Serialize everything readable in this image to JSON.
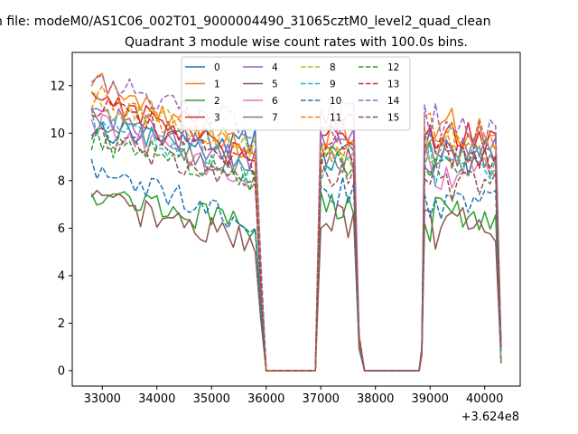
{
  "chart_data": {
    "type": "line",
    "suptitle": "n file: modeM0/AS1C06_002T01_9000004490_31065cztM0_level2_quad_clean",
    "title": "Quadrant 3 module wise count rates with 100.0s bins.",
    "xlabel": "",
    "ylabel": "",
    "x_offset_label": "+3.624e8",
    "xlim": [
      32450,
      40650
    ],
    "ylim": [
      -0.65,
      13.4
    ],
    "xticks": [
      "33000",
      "34000",
      "35000",
      "36000",
      "37000",
      "38000",
      "39000",
      "40000"
    ],
    "yticks": [
      "0",
      "2",
      "4",
      "6",
      "8",
      "10",
      "12"
    ],
    "legend_position": "top-center",
    "segments": [
      {
        "start": 32800,
        "end": 35800
      },
      {
        "start": 37000,
        "end": 37600
      },
      {
        "start": 38900,
        "end": 40200
      }
    ],
    "series": [
      {
        "name": "0",
        "color": "#1f77b4",
        "dash": "solid",
        "level": 10.2,
        "tail": 9.6,
        "mid": 9.0,
        "end": 9.0
      },
      {
        "name": "1",
        "color": "#ff7f0e",
        "dash": "solid",
        "level": 12.2,
        "tail": 9.2,
        "mid": 9.8,
        "end": 10.0
      },
      {
        "name": "2",
        "color": "#2ca02c",
        "dash": "solid",
        "level": 7.6,
        "tail": 6.0,
        "mid": 7.0,
        "end": 6.4
      },
      {
        "name": "3",
        "color": "#d62728",
        "dash": "solid",
        "level": 11.8,
        "tail": 8.6,
        "mid": 10.2,
        "end": 9.6
      },
      {
        "name": "4",
        "color": "#9467bd",
        "dash": "solid",
        "level": 11.0,
        "tail": 8.8,
        "mid": 9.6,
        "end": 9.2
      },
      {
        "name": "5",
        "color": "#8c564b",
        "dash": "solid",
        "level": 7.2,
        "tail": 5.4,
        "mid": 6.4,
        "end": 6.0
      },
      {
        "name": "6",
        "color": "#e377c2",
        "dash": "solid",
        "level": 10.4,
        "tail": 8.0,
        "mid": 10.6,
        "end": 8.4
      },
      {
        "name": "7",
        "color": "#7f7f7f",
        "dash": "solid",
        "level": 10.8,
        "tail": 8.2,
        "mid": 8.8,
        "end": 8.8
      },
      {
        "name": "8",
        "color": "#bcbd22",
        "dash": "dashed",
        "level": 11.4,
        "tail": 9.4,
        "mid": 9.2,
        "end": 9.4
      },
      {
        "name": "9",
        "color": "#17becf",
        "dash": "dashed",
        "level": 10.6,
        "tail": 8.4,
        "mid": 8.6,
        "end": 8.6
      },
      {
        "name": "10",
        "color": "#1f77b4",
        "dash": "dashed",
        "level": 8.4,
        "tail": 6.2,
        "mid": 7.6,
        "end": 7.0
      },
      {
        "name": "11",
        "color": "#ff7f0e",
        "dash": "dashed",
        "level": 11.6,
        "tail": 9.0,
        "mid": 9.6,
        "end": 9.8
      },
      {
        "name": "12",
        "color": "#2ca02c",
        "dash": "dashed",
        "level": 9.8,
        "tail": 8.0,
        "mid": 9.0,
        "end": 8.6
      },
      {
        "name": "13",
        "color": "#d62728",
        "dash": "dashed",
        "level": 11.2,
        "tail": 8.6,
        "mid": 9.4,
        "end": 9.2
      },
      {
        "name": "14",
        "color": "#9467bd",
        "dash": "dashed",
        "level": 12.5,
        "tail": 10.2,
        "mid": 10.2,
        "end": 10.2
      },
      {
        "name": "15",
        "color": "#8c564b",
        "dash": "dashed",
        "level": 10.0,
        "tail": 7.8,
        "mid": 8.2,
        "end": 8.0
      }
    ]
  }
}
